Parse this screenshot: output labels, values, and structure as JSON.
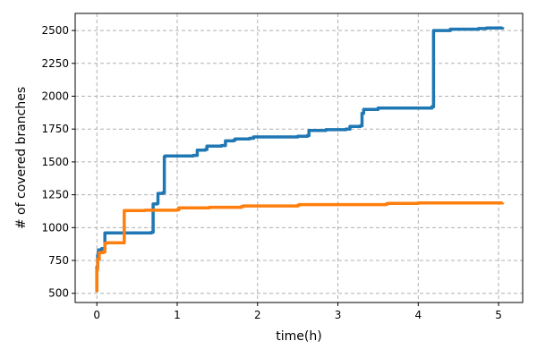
{
  "chart_data": {
    "type": "line",
    "xlabel": "time(h)",
    "ylabel": "# of covered branches",
    "xlim": [
      -0.27,
      5.3
    ],
    "ylim": [
      430,
      2630
    ],
    "xticks": [
      0,
      1,
      2,
      3,
      4,
      5
    ],
    "yticks": [
      500,
      750,
      1000,
      1250,
      1500,
      1750,
      2000,
      2250,
      2500
    ],
    "grid": true,
    "legend": "none",
    "series": [
      {
        "color": "#1f77b4",
        "points": [
          [
            0.0,
            510
          ],
          [
            0.0,
            700
          ],
          [
            0.01,
            790
          ],
          [
            0.02,
            830
          ],
          [
            0.06,
            840
          ],
          [
            0.08,
            840
          ],
          [
            0.1,
            960
          ],
          [
            0.68,
            965
          ],
          [
            0.7,
            1180
          ],
          [
            0.75,
            1185
          ],
          [
            0.76,
            1260
          ],
          [
            0.82,
            1265
          ],
          [
            0.84,
            1540
          ],
          [
            0.85,
            1545
          ],
          [
            1.2,
            1550
          ],
          [
            1.25,
            1590
          ],
          [
            1.35,
            1595
          ],
          [
            1.37,
            1620
          ],
          [
            1.55,
            1625
          ],
          [
            1.6,
            1660
          ],
          [
            1.7,
            1665
          ],
          [
            1.72,
            1675
          ],
          [
            1.9,
            1680
          ],
          [
            1.95,
            1690
          ],
          [
            2.5,
            1695
          ],
          [
            2.62,
            1700
          ],
          [
            2.64,
            1740
          ],
          [
            2.85,
            1745
          ],
          [
            3.1,
            1750
          ],
          [
            3.15,
            1770
          ],
          [
            3.28,
            1775
          ],
          [
            3.3,
            1870
          ],
          [
            3.32,
            1900
          ],
          [
            3.5,
            1910
          ],
          [
            3.9,
            1910
          ],
          [
            4.17,
            1920
          ],
          [
            4.19,
            2500
          ],
          [
            4.4,
            2510
          ],
          [
            4.75,
            2515
          ],
          [
            4.85,
            2520
          ],
          [
            5.05,
            2525
          ]
        ]
      },
      {
        "color": "#ff7f0e",
        "points": [
          [
            0.0,
            510
          ],
          [
            0.0,
            680
          ],
          [
            0.01,
            760
          ],
          [
            0.03,
            810
          ],
          [
            0.08,
            815
          ],
          [
            0.1,
            880
          ],
          [
            0.12,
            885
          ],
          [
            0.33,
            885
          ],
          [
            0.34,
            1130
          ],
          [
            0.6,
            1132
          ],
          [
            1.0,
            1135
          ],
          [
            1.02,
            1150
          ],
          [
            1.4,
            1155
          ],
          [
            1.8,
            1160
          ],
          [
            1.82,
            1165
          ],
          [
            2.5,
            1170
          ],
          [
            2.52,
            1175
          ],
          [
            3.6,
            1180
          ],
          [
            3.62,
            1185
          ],
          [
            4.0,
            1188
          ],
          [
            5.05,
            1190
          ]
        ]
      }
    ]
  }
}
